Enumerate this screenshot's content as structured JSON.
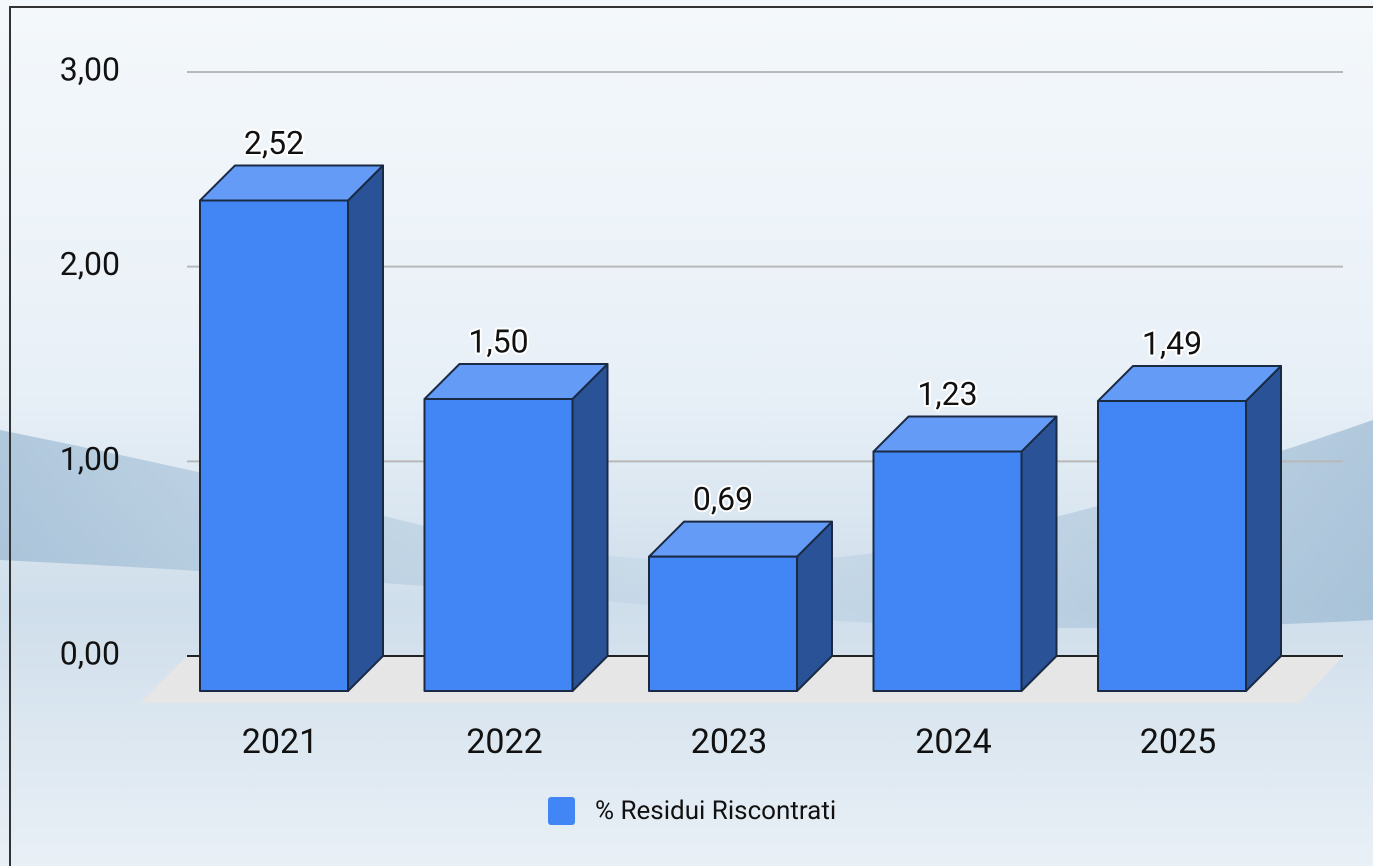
{
  "chart_data": {
    "type": "bar3d",
    "categories": [
      "2021",
      "2022",
      "2023",
      "2024",
      "2025"
    ],
    "series": [
      {
        "name": "% Residui Riscontrati",
        "color": "#4285f4",
        "values": [
          2.52,
          1.5,
          0.69,
          1.23,
          1.49
        ],
        "value_labels": [
          "2,52",
          "1,50",
          "0,69",
          "1,23",
          "1,49"
        ]
      }
    ],
    "ylim": [
      0,
      3
    ],
    "yticks": [
      {
        "value": 0,
        "label": "0,00"
      },
      {
        "value": 1,
        "label": "1,00"
      },
      {
        "value": 2,
        "label": "2,00"
      },
      {
        "value": 3,
        "label": "3,00"
      }
    ],
    "grid": true,
    "legend": "bottom"
  }
}
